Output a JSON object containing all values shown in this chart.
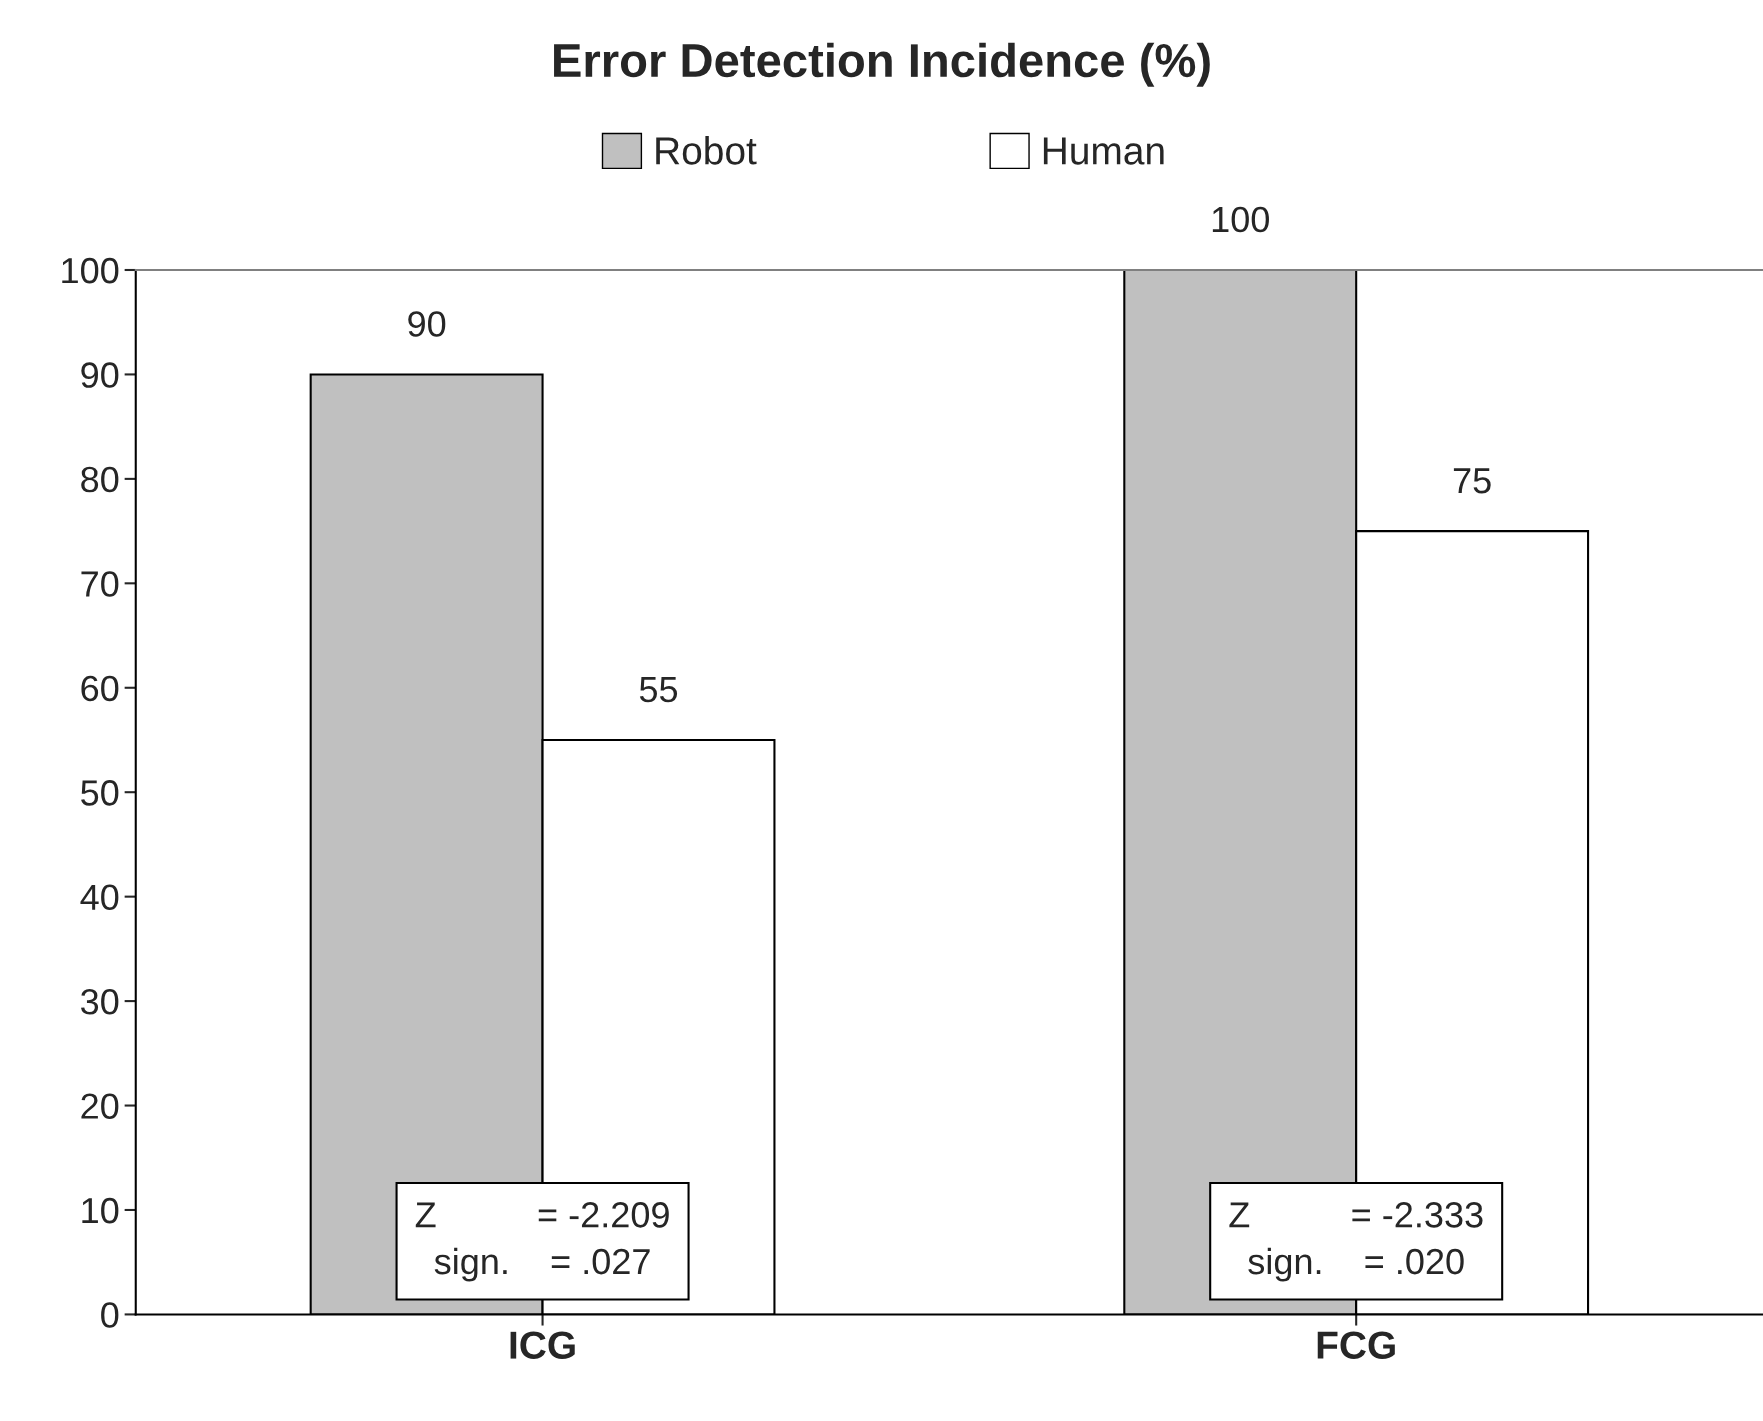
{
  "chart_data": {
    "type": "bar",
    "title": "Error Detection Incidence (%)",
    "categories": [
      "ICG",
      "FCG"
    ],
    "series": [
      {
        "name": "Robot",
        "color": "#c0c0c0",
        "values": [
          90,
          100
        ]
      },
      {
        "name": "Human",
        "color": "#ffffff",
        "values": [
          55,
          75
        ]
      }
    ],
    "ylim": [
      0,
      100
    ],
    "yticks": [
      0,
      10,
      20,
      30,
      40,
      50,
      60,
      70,
      80,
      90,
      100
    ],
    "data_labels": true,
    "legend": "top",
    "grid": false,
    "annotations": [
      "Z          = -2.209\nsign.    = .027",
      "Z          = -2.333\nsign.    = .020"
    ]
  }
}
